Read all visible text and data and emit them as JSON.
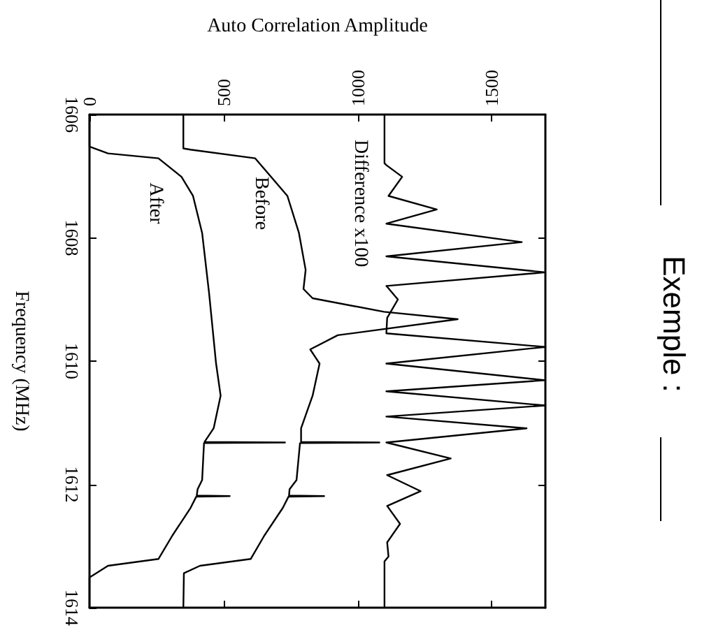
{
  "chart_data": {
    "type": "line",
    "title": "Exemple :",
    "xlabel": "Auto Correlation Amplitude",
    "ylabel": "Frequency (MHz)",
    "xlim": [
      0,
      1700
    ],
    "xticks": [
      0,
      500,
      1000,
      1500
    ],
    "ylim": [
      1614,
      1606
    ],
    "yticks": [
      1606,
      1608,
      1610,
      1612,
      1614
    ],
    "legend": false,
    "series": [
      {
        "name": "Difference x100",
        "color": "#000000",
        "values": [
          1606,
          1606.79,
          1606.82,
          1607.01,
          1607.32,
          1607.54,
          1607.77,
          1608.07,
          1608.3,
          1608.56,
          1608.78,
          1609.0,
          1609.3,
          1609.55,
          1609.77,
          1610.04,
          1610.31,
          1610.49,
          1610.72,
          1610.9,
          1611.09,
          1611.32,
          1611.58,
          1611.85,
          1612.11,
          1612.35,
          1612.64,
          1612.94,
          1613.17,
          1613.25,
          1614
        ],
        "x": [
          1100,
          1100,
          1107,
          1166,
          1115,
          1295,
          1107,
          1612,
          1107,
          1700,
          1107,
          1150,
          1110,
          1107,
          1700,
          1107,
          1700,
          1107,
          1700,
          1107,
          1630,
          1107,
          1347,
          1110,
          1235,
          1110,
          1158,
          1110,
          1115,
          1100,
          1100
        ]
      },
      {
        "name": "Before",
        "color": "#000000",
        "values": [
          1606,
          1606.55,
          1606.57,
          1606.71,
          1607.32,
          1607.92,
          1608.52,
          1608.83,
          1608.98,
          1609.2,
          1609.32,
          1609.58,
          1609.81,
          1610.04,
          1610.56,
          1611.09,
          1611.31,
          1611.32,
          1611.33,
          1611.93,
          1612.08,
          1612.18,
          1612.19,
          1612.2,
          1612.38,
          1612.83,
          1613.21,
          1613.32,
          1613.44,
          1614
        ],
        "x": [
          350,
          350,
          377,
          618,
          738,
          781,
          806,
          798,
          832,
          1098,
          1373,
          926,
          823,
          858,
          832,
          789,
          789,
          1081,
          785,
          772,
          746,
          744,
          875,
          742,
          721,
          652,
          601,
          412,
          352,
          350
        ]
      },
      {
        "name": "After",
        "color": "#000000",
        "values": [
          1606,
          1606.52,
          1606.63,
          1606.71,
          1607.01,
          1607.32,
          1607.92,
          1608.9,
          1610.04,
          1610.56,
          1611.09,
          1611.31,
          1611.32,
          1611.33,
          1611.93,
          1612.08,
          1612.18,
          1612.19,
          1612.2,
          1612.38,
          1612.83,
          1613.21,
          1613.32,
          1613.51,
          1614
        ],
        "x": [
          0,
          0,
          69,
          257,
          343,
          386,
          420,
          446,
          472,
          489,
          463,
          429,
          729,
          427,
          420,
          403,
          400,
          523,
          398,
          377,
          309,
          257,
          69,
          0,
          0
        ]
      }
    ]
  }
}
